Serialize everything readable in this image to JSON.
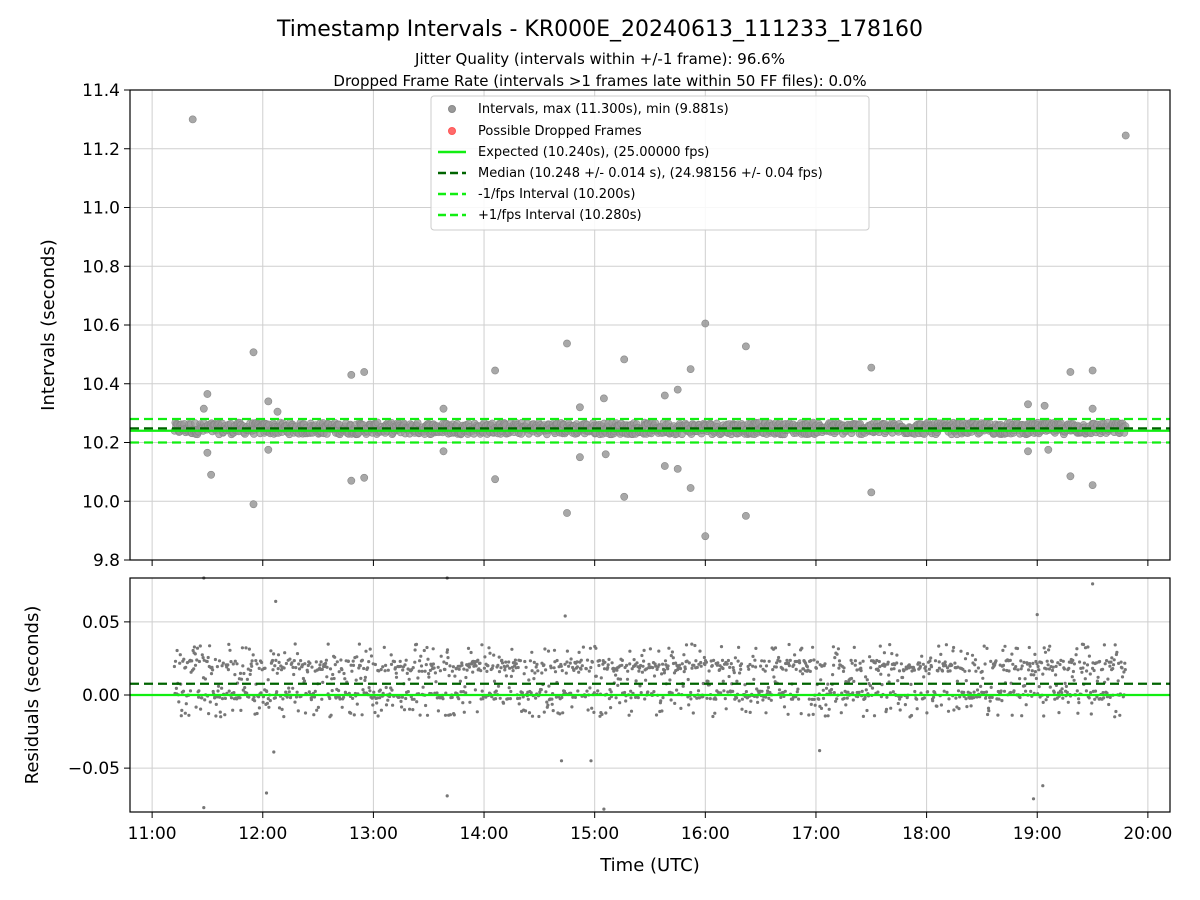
{
  "chart_data": [
    {
      "type": "scatter",
      "name": "intervals-panel",
      "title": "Timestamp Intervals - KR000E_20240613_111233_178160",
      "subtitle": [
        "Jitter Quality (intervals within +/-1 frame): 96.6%",
        "Dropped Frame Rate (intervals >1 frames late within 50 FF files): 0.0%"
      ],
      "xlabel": "",
      "ylabel": "Intervals (seconds)",
      "xlim": [
        "10:48",
        "20:12"
      ],
      "ylim": [
        9.8,
        11.4
      ],
      "x_ticks": [
        "11:00",
        "12:00",
        "13:00",
        "14:00",
        "15:00",
        "16:00",
        "17:00",
        "18:00",
        "19:00",
        "20:00"
      ],
      "y_ticks": [
        "9.8",
        "10.0",
        "10.2",
        "10.4",
        "10.6",
        "10.8",
        "11.0",
        "11.2",
        "11.4"
      ],
      "grid": true,
      "legend_position": "top-center",
      "x_range_data": [
        "11:12",
        "19:48"
      ],
      "series": [
        {
          "name": "Intervals, max (11.300s), min (9.881s)",
          "color": "#999999",
          "marker": "circle",
          "bulk_center": 10.248,
          "bulk_spread": 0.02,
          "outliers": [
            {
              "x": "11:22",
              "y": 11.3
            },
            {
              "x": "19:48",
              "y": 11.245
            },
            {
              "x": "16:00",
              "y": 10.605
            },
            {
              "x": "14:45",
              "y": 10.537
            },
            {
              "x": "16:22",
              "y": 10.527
            },
            {
              "x": "11:55",
              "y": 10.507
            },
            {
              "x": "15:16",
              "y": 10.483
            },
            {
              "x": "17:30",
              "y": 10.455
            },
            {
              "x": "15:52",
              "y": 10.45
            },
            {
              "x": "14:06",
              "y": 10.445
            },
            {
              "x": "19:18",
              "y": 10.44
            },
            {
              "x": "12:55",
              "y": 10.44
            },
            {
              "x": "19:30",
              "y": 10.445
            },
            {
              "x": "12:48",
              "y": 10.43
            },
            {
              "x": "15:45",
              "y": 10.38
            },
            {
              "x": "11:30",
              "y": 10.365
            },
            {
              "x": "15:38",
              "y": 10.36
            },
            {
              "x": "15:05",
              "y": 10.35
            },
            {
              "x": "12:03",
              "y": 10.34
            },
            {
              "x": "18:55",
              "y": 10.33
            },
            {
              "x": "19:04",
              "y": 10.325
            },
            {
              "x": "14:52",
              "y": 10.32
            },
            {
              "x": "11:28",
              "y": 10.315
            },
            {
              "x": "13:38",
              "y": 10.315
            },
            {
              "x": "12:08",
              "y": 10.305
            },
            {
              "x": "19:30",
              "y": 10.315
            },
            {
              "x": "11:30",
              "y": 10.165
            },
            {
              "x": "12:03",
              "y": 10.175
            },
            {
              "x": "13:38",
              "y": 10.17
            },
            {
              "x": "15:06",
              "y": 10.16
            },
            {
              "x": "14:52",
              "y": 10.15
            },
            {
              "x": "18:55",
              "y": 10.17
            },
            {
              "x": "19:06",
              "y": 10.175
            },
            {
              "x": "15:38",
              "y": 10.12
            },
            {
              "x": "15:45",
              "y": 10.11
            },
            {
              "x": "11:32",
              "y": 10.09
            },
            {
              "x": "19:18",
              "y": 10.085
            },
            {
              "x": "12:55",
              "y": 10.08
            },
            {
              "x": "12:48",
              "y": 10.07
            },
            {
              "x": "14:06",
              "y": 10.075
            },
            {
              "x": "19:30",
              "y": 10.055
            },
            {
              "x": "15:52",
              "y": 10.045
            },
            {
              "x": "17:30",
              "y": 10.03
            },
            {
              "x": "15:16",
              "y": 10.015
            },
            {
              "x": "11:55",
              "y": 9.99
            },
            {
              "x": "14:45",
              "y": 9.96
            },
            {
              "x": "16:22",
              "y": 9.95
            },
            {
              "x": "16:00",
              "y": 9.881
            }
          ]
        },
        {
          "name": "Possible Dropped Frames",
          "color": "#ff6b6b",
          "marker": "circle",
          "values": []
        },
        {
          "name": "Expected (10.240s), (25.00000 fps)",
          "color": "#11ee11",
          "line": "solid",
          "y": 10.24
        },
        {
          "name": "Median (10.248 +/- 0.014 s), (24.98156 +/- 0.04 fps)",
          "color": "#006400",
          "line": "dashed",
          "y": 10.248
        },
        {
          "name": "-1/fps Interval (10.200s)",
          "color": "#11ee11",
          "line": "dashed",
          "y": 10.2
        },
        {
          "name": "+1/fps Interval (10.280s)",
          "color": "#11ee11",
          "line": "dashed",
          "y": 10.28
        }
      ]
    },
    {
      "type": "scatter",
      "name": "residuals-panel",
      "title": "",
      "xlabel": "Time (UTC)",
      "ylabel": "Residuals (seconds)",
      "xlim": [
        "10:48",
        "20:12"
      ],
      "ylim": [
        -0.08,
        0.08
      ],
      "x_ticks": [
        "11:00",
        "12:00",
        "13:00",
        "14:00",
        "15:00",
        "16:00",
        "17:00",
        "18:00",
        "19:00",
        "20:00"
      ],
      "y_ticks": [
        "−0.05",
        "0.00",
        "0.05"
      ],
      "y_tick_values": [
        -0.05,
        0.0,
        0.05
      ],
      "grid": true,
      "x_range_data": [
        "11:12",
        "19:48"
      ],
      "series": [
        {
          "name": "residuals",
          "color": "#777777",
          "marker": "dot",
          "bulk_center": 0.01,
          "bulk_spread": 0.025,
          "outliers": [
            {
              "x": "11:28",
              "y": 0.08
            },
            {
              "x": "13:40",
              "y": 0.08
            },
            {
              "x": "19:30",
              "y": 0.076
            },
            {
              "x": "12:07",
              "y": 0.064
            },
            {
              "x": "14:44",
              "y": 0.054
            },
            {
              "x": "19:00",
              "y": 0.055
            },
            {
              "x": "11:28",
              "y": -0.077
            },
            {
              "x": "12:02",
              "y": -0.067
            },
            {
              "x": "13:40",
              "y": -0.069
            },
            {
              "x": "15:05",
              "y": -0.078
            },
            {
              "x": "18:58",
              "y": -0.071
            },
            {
              "x": "19:03",
              "y": -0.062
            },
            {
              "x": "14:42",
              "y": -0.045
            },
            {
              "x": "14:58",
              "y": -0.045
            },
            {
              "x": "12:06",
              "y": -0.039
            },
            {
              "x": "17:02",
              "y": -0.038
            }
          ]
        },
        {
          "name": "zero-line",
          "color": "#11ee11",
          "line": "solid",
          "y": 0.0
        },
        {
          "name": "median-offset",
          "color": "#006400",
          "line": "dashed",
          "y": 0.0077
        }
      ]
    }
  ]
}
